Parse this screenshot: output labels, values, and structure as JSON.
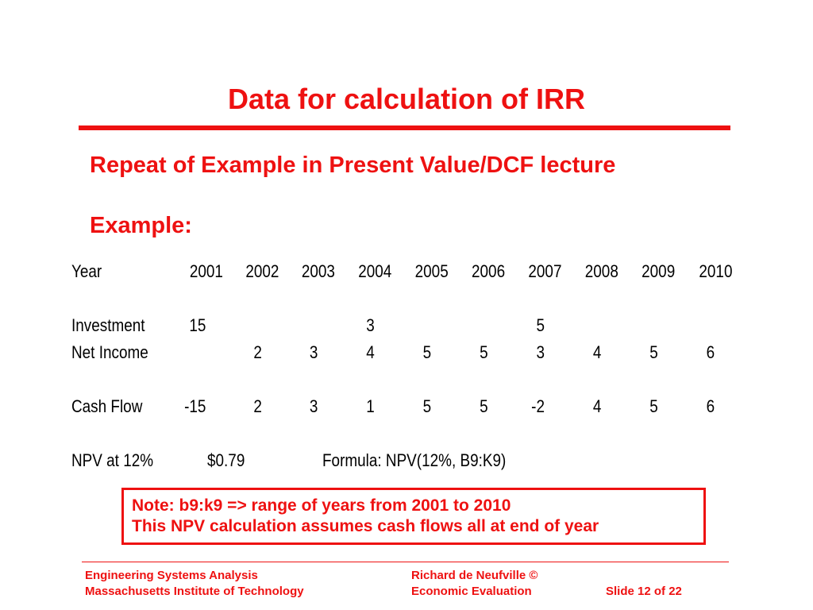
{
  "title": "Data for calculation of IRR",
  "subtitle": "Repeat of Example in Present Value/DCF lecture",
  "example_label": "Example:",
  "table": {
    "header": {
      "label": "Year",
      "years": [
        "2001",
        "2002",
        "2003",
        "2004",
        "2005",
        "2006",
        "2007",
        "2008",
        "2009",
        "2010"
      ]
    },
    "investment": {
      "label": "Investment",
      "values": [
        "15",
        "",
        "",
        "3",
        "",
        "",
        "5",
        "",
        "",
        ""
      ]
    },
    "net_income": {
      "label": "Net Income",
      "values": [
        "",
        "2",
        "3",
        "4",
        "5",
        "5",
        "3",
        "4",
        "5",
        "6"
      ]
    },
    "cash_flow": {
      "label": "Cash Flow",
      "values": [
        "-15",
        "2",
        "3",
        "1",
        "5",
        "5",
        "-2",
        "4",
        "5",
        "6"
      ]
    }
  },
  "npv": {
    "label": "NPV at 12%",
    "value": "$0.79",
    "formula": "Formula:  NPV(12%, B9:K9)"
  },
  "note": {
    "line1": "Note: b9:k9 => range of years from 2001 to 2010",
    "line2": "This NPV calculation assumes cash flows all at end of year"
  },
  "footer": {
    "course": "Engineering Systems Analysis",
    "institution": "Massachusetts Institute of Technology",
    "author": "Richard de Neufville  ©",
    "topic": "Economic Evaluation",
    "slide": "Slide 12 of 22"
  },
  "colors": {
    "accent": "#ee1111",
    "text": "#000000",
    "background": "#ffffff"
  }
}
